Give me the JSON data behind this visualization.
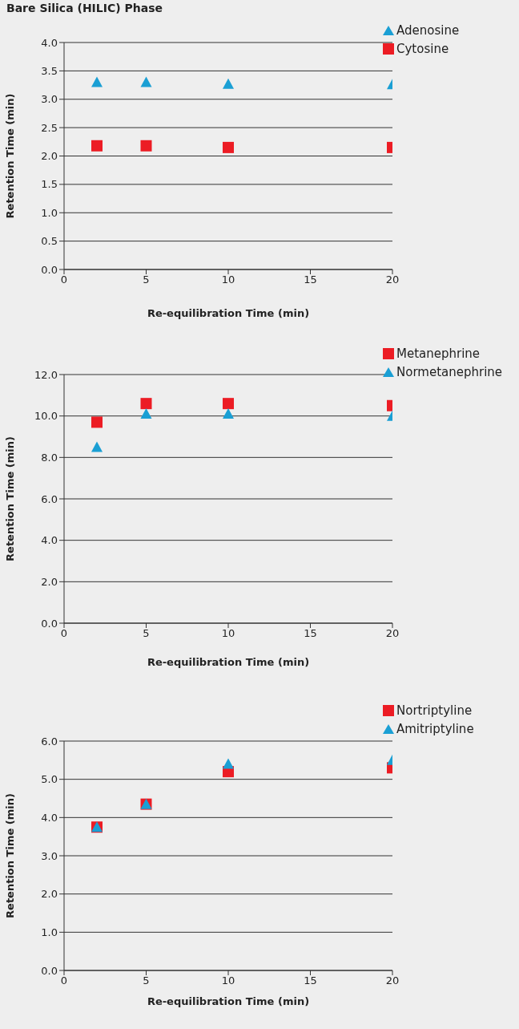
{
  "chart_data": [
    {
      "type": "scatter",
      "title": "Bare Silica (HILIC) Phase",
      "xlabel": "Re-equilibration Time (min)",
      "ylabel": "Retention Time (min)",
      "x": [
        2,
        5,
        10,
        20
      ],
      "series": [
        {
          "name": "Adenosine",
          "color": "#1a9fd4",
          "marker": "triangle",
          "values": [
            3.3,
            3.3,
            3.27,
            3.26
          ]
        },
        {
          "name": "Cytosine",
          "color": "#ec1c24",
          "marker": "square",
          "values": [
            2.18,
            2.18,
            2.15,
            2.15
          ]
        }
      ],
      "xlim": [
        0,
        20
      ],
      "xticks": [
        0,
        5,
        10,
        15,
        20
      ],
      "ylim": [
        0,
        4
      ],
      "yticks": [
        {
          "value": 0,
          "label": "0.0"
        },
        {
          "value": 0.5,
          "label": "0.5"
        },
        {
          "value": 1,
          "label": "1.0"
        },
        {
          "value": 1.5,
          "label": "1.5"
        },
        {
          "value": 2,
          "label": "2.0"
        },
        {
          "value": 2.5,
          "label": "2.5"
        },
        {
          "value": 3,
          "label": "3.0"
        },
        {
          "value": 3.5,
          "label": "3.5"
        },
        {
          "value": 4,
          "label": "4.0"
        }
      ],
      "grid": "y",
      "legend": "top right"
    },
    {
      "type": "scatter",
      "xlabel": "Re-equilibration Time (min)",
      "ylabel": "Retention Time (min)",
      "x": [
        2,
        5,
        10,
        20
      ],
      "series": [
        {
          "name": "Metanephrine",
          "color": "#ec1c24",
          "marker": "square",
          "values": [
            9.7,
            10.6,
            10.6,
            10.5
          ]
        },
        {
          "name": "Normetanephrine",
          "color": "#1a9fd4",
          "marker": "triangle",
          "values": [
            8.5,
            10.1,
            10.1,
            10.0
          ]
        }
      ],
      "xlim": [
        0,
        20
      ],
      "xticks": [
        0,
        5,
        10,
        15,
        20
      ],
      "ylim": [
        0,
        12
      ],
      "yticks": [
        {
          "value": 0,
          "label": "0.0"
        },
        {
          "value": 2,
          "label": "2.0"
        },
        {
          "value": 4,
          "label": "4.0"
        },
        {
          "value": 6,
          "label": "6.0"
        },
        {
          "value": 8,
          "label": "8.0"
        },
        {
          "value": 10,
          "label": "10.0"
        },
        {
          "value": 12,
          "label": "12.0"
        }
      ],
      "grid": "y",
      "legend": "top right"
    },
    {
      "type": "scatter",
      "xlabel": "Re-equilibration Time (min)",
      "ylabel": "Retention Time (min)",
      "x": [
        2,
        5,
        10,
        20
      ],
      "series": [
        {
          "name": "Nortriptyline",
          "color": "#ec1c24",
          "marker": "square",
          "values": [
            3.75,
            4.35,
            5.2,
            5.3
          ]
        },
        {
          "name": "Amitriptyline",
          "color": "#1a9fd4",
          "marker": "triangle",
          "values": [
            3.75,
            4.35,
            5.4,
            5.5
          ]
        }
      ],
      "xlim": [
        0,
        20
      ],
      "xticks": [
        0,
        5,
        10,
        15,
        20
      ],
      "ylim": [
        0,
        6
      ],
      "yticks": [
        {
          "value": 0,
          "label": "0.0"
        },
        {
          "value": 1,
          "label": "1.0"
        },
        {
          "value": 2,
          "label": "2.0"
        },
        {
          "value": 3,
          "label": "3.0"
        },
        {
          "value": 4,
          "label": "4.0"
        },
        {
          "value": 5,
          "label": "5.0"
        },
        {
          "value": 6,
          "label": "6.0"
        }
      ],
      "grid": "y",
      "legend": "top right"
    }
  ]
}
